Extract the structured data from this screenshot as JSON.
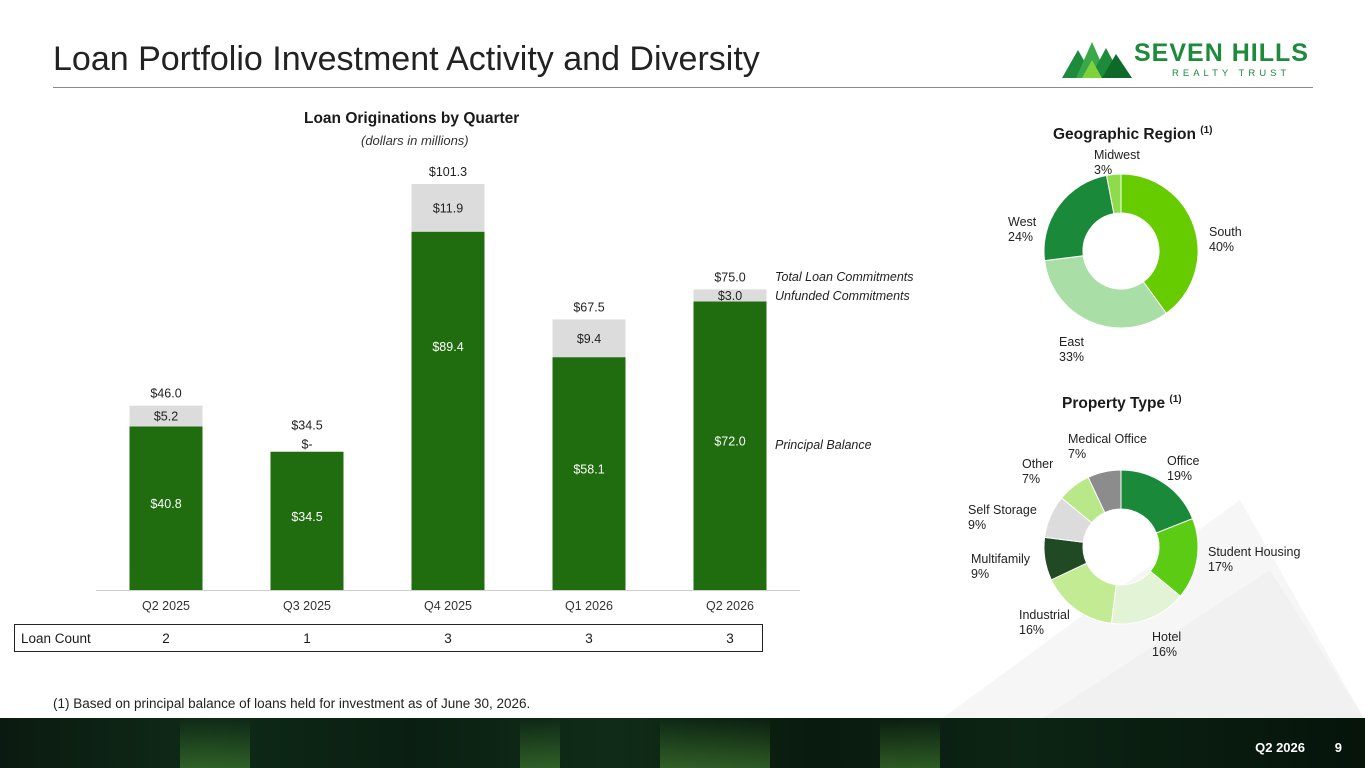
{
  "page": {
    "title": "Loan Portfolio Investment Activity and Diversity",
    "footnote": "(1) Based on principal balance of loans held for investment as of June 30, 2026.",
    "footer_quarter": "Q2 2026",
    "footer_page": "9"
  },
  "logo": {
    "name": "SEVEN HILLS",
    "sub": "REALTY TRUST"
  },
  "colors": {
    "principal": "#1f6d0f",
    "unfunded": "#dcdcdc",
    "brand": "#1e8a3c"
  },
  "chart_data": [
    {
      "type": "bar",
      "title": "Loan Originations by Quarter",
      "subtitle": "(dollars in millions)",
      "categories": [
        "Q2 2025",
        "Q3 2025",
        "Q4 2025",
        "Q1 2026",
        "Q2 2026"
      ],
      "series": [
        {
          "name": "Principal Balance",
          "values": [
            40.8,
            34.5,
            89.4,
            58.1,
            72.0
          ],
          "labels": [
            "$40.8",
            "$34.5",
            "$89.4",
            "$58.1",
            "$72.0"
          ]
        },
        {
          "name": "Unfunded Commitments",
          "values": [
            5.2,
            0,
            11.9,
            9.4,
            3.0
          ],
          "labels": [
            "$5.2",
            "$-",
            "$11.9",
            "$9.4",
            "$3.0"
          ]
        }
      ],
      "totals": {
        "name": "Total Loan Commitments",
        "values": [
          46.0,
          34.5,
          101.3,
          67.5,
          75.0
        ],
        "labels": [
          "$46.0",
          "$34.5",
          "$101.3",
          "$67.5",
          "$75.0"
        ]
      },
      "stacked": true,
      "ylim": [
        0,
        101.3
      ],
      "loan_count": {
        "label": "Loan Count",
        "values": [
          "2",
          "1",
          "3",
          "3",
          "3"
        ]
      }
    },
    {
      "type": "pie",
      "style": "donut",
      "title": "Geographic Region",
      "title_note": "(1)",
      "slices": [
        {
          "name": "South",
          "value": 40,
          "pct": "40%",
          "color": "#66cc00"
        },
        {
          "name": "East",
          "value": 33,
          "pct": "33%",
          "color": "#a9dfa6"
        },
        {
          "name": "West",
          "value": 24,
          "pct": "24%",
          "color": "#1a8a3a"
        },
        {
          "name": "Midwest",
          "value": 3,
          "pct": "3%",
          "color": "#8fdc4a"
        }
      ]
    },
    {
      "type": "pie",
      "style": "donut",
      "title": "Property Type",
      "title_note": "(1)",
      "slices": [
        {
          "name": "Office",
          "value": 19,
          "pct": "19%",
          "color": "#1a8a3a"
        },
        {
          "name": "Student Housing",
          "value": 17,
          "pct": "17%",
          "color": "#5ccb14"
        },
        {
          "name": "Hotel",
          "value": 16,
          "pct": "16%",
          "color": "#e3f3d5"
        },
        {
          "name": "Industrial",
          "value": 16,
          "pct": "16%",
          "color": "#c2eb94"
        },
        {
          "name": "Multifamily",
          "value": 9,
          "pct": "9%",
          "color": "#1f4a24"
        },
        {
          "name": "Self Storage",
          "value": 9,
          "pct": "9%",
          "color": "#dcdcdc"
        },
        {
          "name": "Other",
          "value": 7,
          "pct": "7%",
          "color": "#b8e888"
        },
        {
          "name": "Medical Office",
          "value": 7,
          "pct": "7%",
          "color": "#8c8c8c"
        }
      ]
    }
  ]
}
